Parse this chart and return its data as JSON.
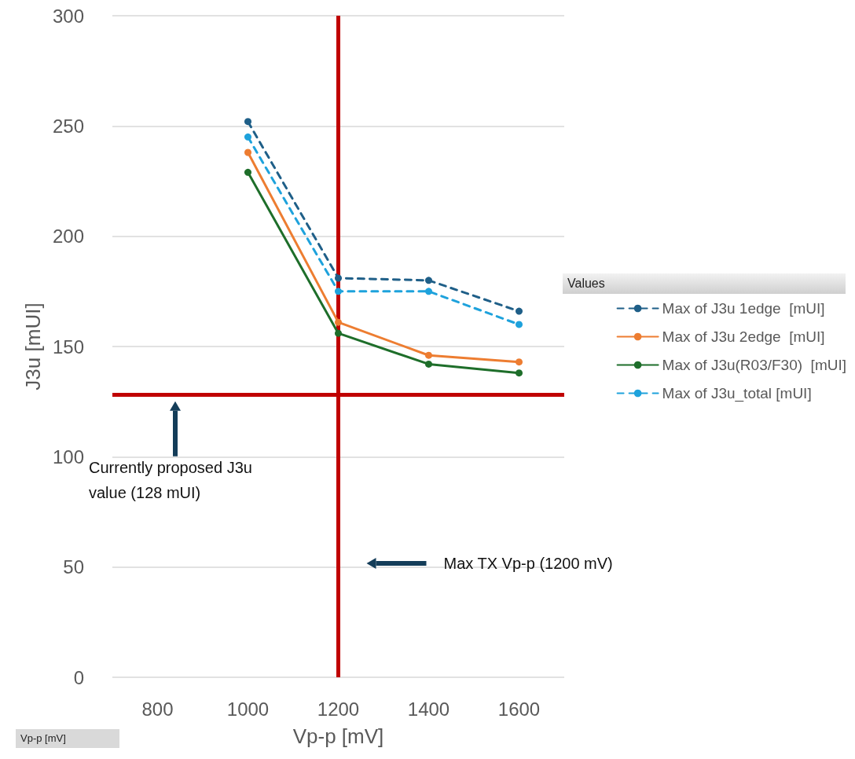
{
  "chart_data": {
    "type": "line",
    "xlabel": "Vp-p [mV]",
    "ylabel": "J3u [mUI]",
    "legend_title": "Values",
    "x": [
      1000,
      1200,
      1400,
      1600
    ],
    "xlim": [
      700,
      1700
    ],
    "xticks": [
      800,
      1000,
      1200,
      1400,
      1600
    ],
    "ylim": [
      0,
      300
    ],
    "yticks": [
      0,
      50,
      100,
      150,
      200,
      250,
      300
    ],
    "grid": "y",
    "legend": "right",
    "marker": "circle",
    "series": [
      {
        "name": "Max of J3u 1edge  [mUI]",
        "color": "#1f5f88",
        "line_style": "dashed",
        "values": [
          252,
          181,
          180,
          166
        ]
      },
      {
        "name": "Max of J3u 2edge  [mUI]",
        "color": "#ed7d31",
        "line_style": "solid",
        "values": [
          238,
          161,
          146,
          143
        ]
      },
      {
        "name": "Max of J3u(R03/F30)  [mUI]",
        "color": "#1e6e2a",
        "line_style": "solid",
        "values": [
          229,
          156,
          142,
          138
        ]
      },
      {
        "name": "Max of J3u_total [mUI]",
        "color": "#1ea2dc",
        "line_style": "dashed",
        "values": [
          245,
          175,
          175,
          160
        ]
      }
    ],
    "ref_lines": [
      {
        "axis": "y",
        "value": 128,
        "color": "#c00000"
      },
      {
        "axis": "x",
        "value": 1200,
        "color": "#c00000"
      }
    ],
    "annotations": [
      "Currently proposed J3u value (128 mUI)",
      "Max TX Vp-p (1200 mV)",
      "Vp-p [mV]"
    ]
  }
}
